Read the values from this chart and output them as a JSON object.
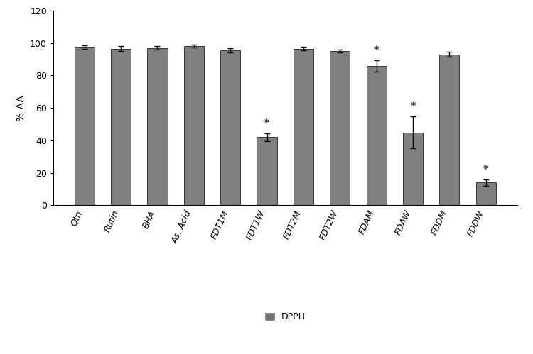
{
  "categories": [
    "Qtn",
    "Rutin",
    "BHA",
    "As. Acid",
    "FDT1M",
    "FDT1W",
    "FDT2M",
    "FDT2W",
    "FDAM",
    "FDAW",
    "FDDM",
    "FDDW"
  ],
  "values": [
    97.5,
    96.5,
    97.0,
    98.0,
    95.5,
    42.0,
    96.5,
    95.0,
    86.0,
    45.0,
    93.0,
    14.0
  ],
  "errors": [
    1.0,
    1.5,
    1.0,
    0.8,
    1.2,
    2.5,
    1.0,
    1.0,
    3.5,
    10.0,
    1.5,
    2.0
  ],
  "bar_color": "#808080",
  "significant": [
    false,
    false,
    false,
    false,
    false,
    true,
    false,
    false,
    true,
    true,
    false,
    true
  ],
  "ylabel": "% AA",
  "ylim": [
    0,
    120
  ],
  "yticks": [
    0,
    20,
    40,
    60,
    80,
    100,
    120
  ],
  "legend_label": "DPPH",
  "legend_color": "#737373",
  "background_color": "#ffffff",
  "axis_fontsize": 10,
  "tick_fontsize": 9,
  "bar_width": 0.55,
  "capsize": 3,
  "star_fontsize": 11,
  "xtick_rotation": 65
}
